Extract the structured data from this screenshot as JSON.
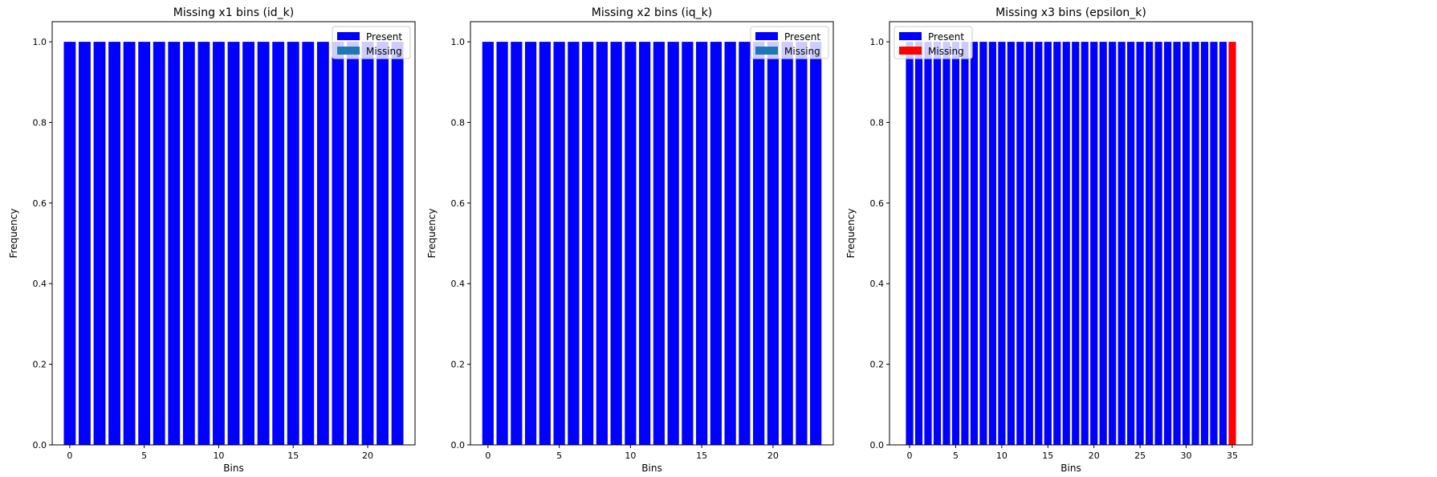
{
  "chart_data": [
    {
      "type": "bar",
      "title": "Missing x1 bins (id_k)",
      "xlabel": "Bins",
      "ylabel": "Frequency",
      "xlim": [
        -1.18,
        23.18
      ],
      "ylim": [
        0,
        1.05
      ],
      "xticks": [
        0,
        5,
        10,
        15,
        20
      ],
      "yticks": [
        0.0,
        0.2,
        0.4,
        0.6,
        0.8,
        1.0
      ],
      "legend": {
        "placement": "upper-right",
        "entries": [
          "Present",
          "Missing"
        ]
      },
      "series": [
        {
          "name": "Present",
          "color": "#0000ff",
          "x": [
            0,
            1,
            2,
            3,
            4,
            5,
            6,
            7,
            8,
            9,
            10,
            11,
            12,
            13,
            14,
            15,
            16,
            17,
            18,
            19,
            20,
            21,
            22
          ],
          "values": [
            1,
            1,
            1,
            1,
            1,
            1,
            1,
            1,
            1,
            1,
            1,
            1,
            1,
            1,
            1,
            1,
            1,
            1,
            1,
            1,
            1,
            1,
            1
          ]
        },
        {
          "name": "Missing",
          "color": "#1f77b4",
          "x": [],
          "values": []
        }
      ]
    },
    {
      "type": "bar",
      "title": "Missing x2 bins (iq_k)",
      "xlabel": "Bins",
      "ylabel": "Frequency",
      "xlim": [
        -1.23,
        24.23
      ],
      "ylim": [
        0,
        1.05
      ],
      "xticks": [
        0,
        5,
        10,
        15,
        20
      ],
      "yticks": [
        0.0,
        0.2,
        0.4,
        0.6,
        0.8,
        1.0
      ],
      "legend": {
        "placement": "upper-right",
        "entries": [
          "Present",
          "Missing"
        ]
      },
      "series": [
        {
          "name": "Present",
          "color": "#0000ff",
          "x": [
            0,
            1,
            2,
            3,
            4,
            5,
            6,
            7,
            8,
            9,
            10,
            11,
            12,
            13,
            14,
            15,
            16,
            17,
            18,
            19,
            20,
            21,
            22,
            23
          ],
          "values": [
            1,
            1,
            1,
            1,
            1,
            1,
            1,
            1,
            1,
            1,
            1,
            1,
            1,
            1,
            1,
            1,
            1,
            1,
            1,
            1,
            1,
            1,
            1,
            1
          ]
        },
        {
          "name": "Missing",
          "color": "#1f77b4",
          "x": [],
          "values": []
        }
      ]
    },
    {
      "type": "bar",
      "title": "Missing x3 bins (epsilon_k)",
      "xlabel": "Bins",
      "ylabel": "Frequency",
      "xlim": [
        -2.18,
        37.18
      ],
      "ylim": [
        0,
        1.05
      ],
      "xticks": [
        0,
        5,
        10,
        15,
        20,
        25,
        30,
        35
      ],
      "yticks": [
        0.0,
        0.2,
        0.4,
        0.6,
        0.8,
        1.0
      ],
      "legend": {
        "placement": "upper-left",
        "entries": [
          "Present",
          "Missing"
        ]
      },
      "series": [
        {
          "name": "Present",
          "color": "#0000ff",
          "x": [
            0,
            1,
            2,
            3,
            4,
            5,
            6,
            7,
            8,
            9,
            10,
            11,
            12,
            13,
            14,
            15,
            16,
            17,
            18,
            19,
            20,
            21,
            22,
            23,
            24,
            25,
            26,
            27,
            28,
            29,
            30,
            31,
            32,
            33,
            34
          ],
          "values": [
            1,
            1,
            1,
            1,
            1,
            1,
            1,
            1,
            1,
            1,
            1,
            1,
            1,
            1,
            1,
            1,
            1,
            1,
            1,
            1,
            1,
            1,
            1,
            1,
            1,
            1,
            1,
            1,
            1,
            1,
            1,
            1,
            1,
            1,
            1
          ]
        },
        {
          "name": "Missing",
          "color": "#ff0000",
          "x": [
            35
          ],
          "values": [
            1
          ]
        }
      ]
    }
  ]
}
